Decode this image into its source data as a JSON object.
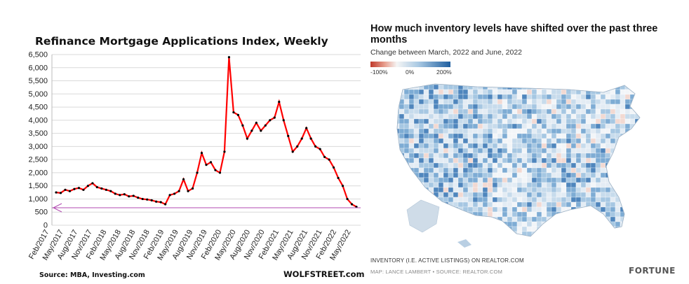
{
  "chart_data": [
    {
      "type": "line",
      "title": "Refinance Mortgage Applications Index, Weekly",
      "xlabel": "",
      "ylabel": "",
      "ylim": [
        0,
        6500
      ],
      "yticks": [
        "0",
        "500",
        "1,000",
        "1,500",
        "2,000",
        "2,500",
        "3,000",
        "3,500",
        "4,000",
        "4,500",
        "5,000",
        "5,500",
        "6,000",
        "6,500"
      ],
      "xticks": [
        "Feb/2017",
        "May/2017",
        "Aug/2017",
        "Nov/2017",
        "Feb/2018",
        "May/2018",
        "Aug/2018",
        "Nov/2018",
        "Feb/2019",
        "May/2019",
        "Aug/2019",
        "Nov/2019",
        "Feb/2020",
        "May/2020",
        "Aug/2020",
        "Nov/2020",
        "Feb/2021",
        "May/2021",
        "Aug/2021",
        "Nov/2021",
        "Feb/2022",
        "May/2022"
      ],
      "grid": true,
      "series": [
        {
          "color": "#ff0000",
          "marker_color": "#000000",
          "x": [
            "2017-01",
            "2017-02",
            "2017-03",
            "2017-04",
            "2017-05",
            "2017-06",
            "2017-07",
            "2017-08",
            "2017-09",
            "2017-10",
            "2017-11",
            "2017-12",
            "2018-01",
            "2018-02",
            "2018-03",
            "2018-04",
            "2018-05",
            "2018-06",
            "2018-07",
            "2018-08",
            "2018-09",
            "2018-10",
            "2018-11",
            "2018-12",
            "2019-01",
            "2019-02",
            "2019-03",
            "2019-04",
            "2019-05",
            "2019-06",
            "2019-07",
            "2019-08",
            "2019-09",
            "2019-10",
            "2019-11",
            "2019-12",
            "2020-01",
            "2020-02",
            "2020-03",
            "2020-04",
            "2020-05",
            "2020-06",
            "2020-07",
            "2020-08",
            "2020-09",
            "2020-10",
            "2020-11",
            "2020-12",
            "2021-01",
            "2021-02",
            "2021-03",
            "2021-04",
            "2021-05",
            "2021-06",
            "2021-07",
            "2021-08",
            "2021-09",
            "2021-10",
            "2021-11",
            "2021-12",
            "2022-01",
            "2022-02",
            "2022-03",
            "2022-04",
            "2022-05",
            "2022-06",
            "2022-07"
          ],
          "values": [
            1250,
            1230,
            1350,
            1300,
            1380,
            1420,
            1350,
            1500,
            1600,
            1450,
            1400,
            1350,
            1300,
            1200,
            1150,
            1180,
            1100,
            1120,
            1050,
            1000,
            980,
            950,
            900,
            880,
            800,
            1150,
            1200,
            1300,
            1750,
            1300,
            1400,
            2000,
            2750,
            2300,
            2400,
            2100,
            2000,
            2800,
            6400,
            4300,
            4200,
            3800,
            3300,
            3600,
            3900,
            3600,
            3800,
            4000,
            4100,
            4700,
            4000,
            3400,
            2800,
            3000,
            3300,
            3700,
            3300,
            3000,
            2900,
            2600,
            2500,
            2200,
            1800,
            1500,
            1000,
            800,
            700
          ]
        }
      ],
      "source": "Source: MBA, Investing.com",
      "brand": "WOLFSTREET.com"
    },
    {
      "type": "heatmap",
      "title": "How much inventory levels have shifted over the past three months",
      "subtitle": "Change between March, 2022 and June, 2022",
      "colorbar": {
        "ticks": [
          "-100%",
          "0%",
          "200%"
        ],
        "colors": [
          "#c0392b",
          "#f5f5f5",
          "#1f5fa0"
        ]
      },
      "footnote": "INVENTORY (I.E. ACTIVE LISTINGS) ON REALTOR.COM",
      "credit": "MAP: LANCE LAMBERT • SOURCE: REALTOR.COM",
      "brand": "FORTUNE"
    }
  ]
}
